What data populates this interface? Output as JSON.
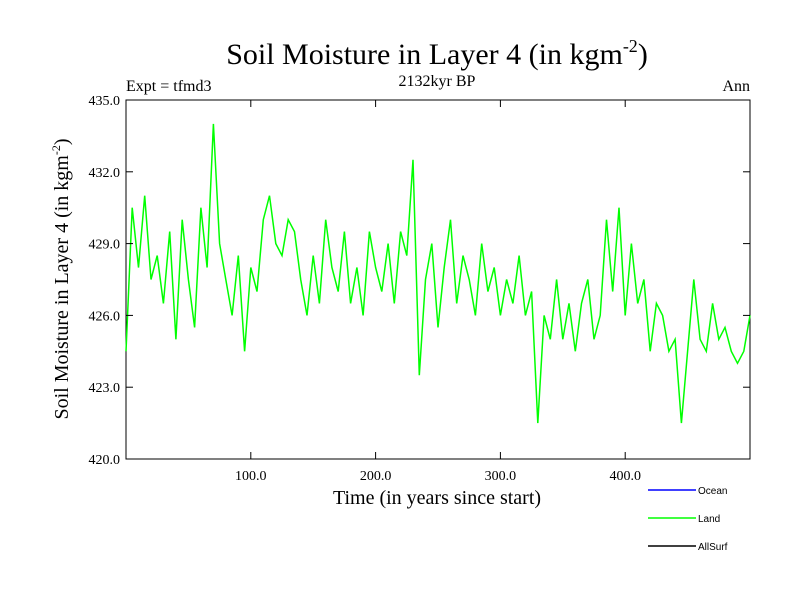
{
  "chart_data": {
    "type": "line",
    "title_main": "Soil Moisture in Layer 4 (in kgm",
    "title_sup": "-2",
    "title_close": ")",
    "subtitle_left": "Expt = tfmd3",
    "subtitle_center": "2132kyr BP",
    "subtitle_right": "Ann",
    "xlabel": "Time (in years since start)",
    "ylabel_main": "Soil Moisture in Layer 4 (in kgm",
    "ylabel_sup": "-2",
    "ylabel_close": ")",
    "xlim": [
      0,
      500
    ],
    "ylim": [
      420,
      435
    ],
    "xticks": [
      100,
      200,
      300,
      400
    ],
    "xtick_labels": [
      "100.0",
      "200.0",
      "300.0",
      "400.0"
    ],
    "yticks": [
      420,
      423,
      426,
      429,
      432,
      435
    ],
    "ytick_labels": [
      "420.0",
      "423.0",
      "426.0",
      "429.0",
      "432.0",
      "435.0"
    ],
    "legend": [
      {
        "name": "Ocean",
        "color": "#0000ff"
      },
      {
        "name": "Land",
        "color": "#00ff00"
      },
      {
        "name": "AllSurf",
        "color": "#000000"
      }
    ],
    "series": [
      {
        "name": "Land",
        "color": "#00ff00",
        "x": [
          0,
          5,
          10,
          15,
          20,
          25,
          30,
          35,
          40,
          45,
          50,
          55,
          60,
          65,
          70,
          75,
          80,
          85,
          90,
          95,
          100,
          105,
          110,
          115,
          120,
          125,
          130,
          135,
          140,
          145,
          150,
          155,
          160,
          165,
          170,
          175,
          180,
          185,
          190,
          195,
          200,
          205,
          210,
          215,
          220,
          225,
          230,
          235,
          240,
          245,
          250,
          255,
          260,
          265,
          270,
          275,
          280,
          285,
          290,
          295,
          300,
          305,
          310,
          315,
          320,
          325,
          330,
          335,
          340,
          345,
          350,
          355,
          360,
          365,
          370,
          375,
          380,
          385,
          390,
          395,
          400,
          405,
          410,
          415,
          420,
          425,
          430,
          435,
          440,
          445,
          450,
          455,
          460,
          465,
          470,
          475,
          480,
          485,
          490,
          495,
          500
        ],
        "values": [
          424.5,
          430.5,
          428.0,
          431.0,
          427.5,
          428.5,
          426.5,
          429.5,
          425.0,
          430.0,
          427.5,
          425.5,
          430.5,
          428.0,
          434.0,
          429.0,
          427.5,
          426.0,
          428.5,
          424.5,
          428.0,
          427.0,
          430.0,
          431.0,
          429.0,
          428.5,
          430.0,
          429.5,
          427.5,
          426.0,
          428.5,
          426.5,
          430.0,
          428.0,
          427.0,
          429.5,
          426.5,
          428.0,
          426.0,
          429.5,
          428.0,
          427.0,
          429.0,
          426.5,
          429.5,
          428.5,
          432.5,
          423.5,
          427.5,
          429.0,
          425.5,
          428.0,
          430.0,
          426.5,
          428.5,
          427.5,
          426.0,
          429.0,
          427.0,
          428.0,
          426.0,
          427.5,
          426.5,
          428.5,
          426.0,
          427.0,
          421.5,
          426.0,
          425.0,
          427.5,
          425.0,
          426.5,
          424.5,
          426.5,
          427.5,
          425.0,
          426.0,
          430.0,
          427.0,
          430.5,
          426.0,
          429.0,
          426.5,
          427.5,
          424.5,
          426.5,
          426.0,
          424.5,
          425.0,
          421.5,
          424.5,
          427.5,
          425.0,
          424.5,
          426.5,
          425.0,
          425.5,
          424.5,
          424.0,
          424.5,
          426.0
        ]
      }
    ]
  }
}
